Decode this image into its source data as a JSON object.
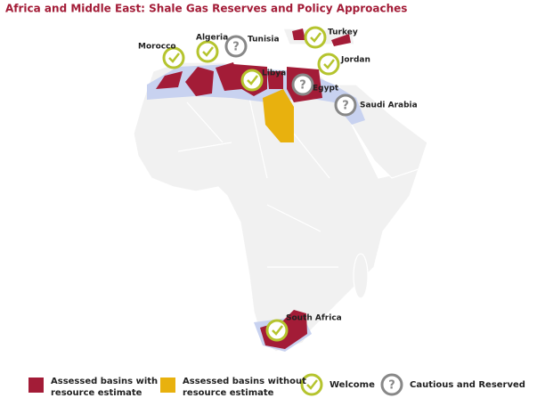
{
  "title": "Africa and Middle East: Shale Gas Reserves and Policy Approaches",
  "basins": [
    {
      "lines": [
        "Assessed basins with",
        "resource estimate"
      ],
      "color": "#a31c37"
    },
    {
      "lines": [
        "Assessed basins without",
        "resource estimate"
      ],
      "color": "#e8b10e"
    }
  ],
  "policies": [
    {
      "label": "Welcome",
      "icon": "check",
      "countries": [
        "Morocco",
        "Algeria",
        "Libya",
        "Turkey",
        "Jordan",
        "South Africa"
      ]
    },
    {
      "label": "Cautious and Reserved",
      "icon": "question",
      "countries": [
        "Tunisia",
        "Egypt",
        "Saudi Arabia"
      ]
    }
  ]
}
